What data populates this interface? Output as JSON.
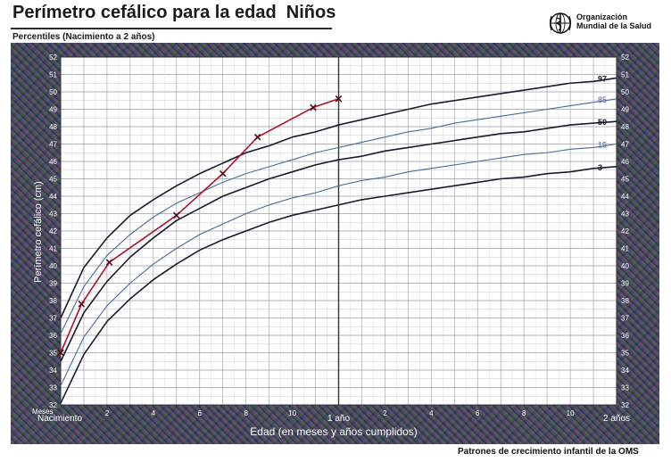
{
  "header": {
    "title": "Perímetro cefálico para la edad  Niños",
    "subtitle": "Percentiles (Nacimiento a 2 años)",
    "org_line1": "Organización",
    "org_line2": "Mundial de la Salud"
  },
  "footer": {
    "source": "Patrones de crecimiento infantil de la OMS"
  },
  "chart_data": {
    "type": "line",
    "title": "Perímetro cefálico para la edad  Niños",
    "subtitle": "Percentiles (Nacimiento a 2 años)",
    "xlabel": "Edad (en meses y años cumplidos)",
    "ylabel": "Perímetro cefálico (cm)",
    "xlim": [
      0,
      24
    ],
    "ylim": [
      32,
      52
    ],
    "grid": true,
    "x_unit_label": "Meses",
    "x_ticks_year1": [
      {
        "x": 0,
        "label": "Nacimiento"
      },
      {
        "x": 2,
        "label": "2"
      },
      {
        "x": 4,
        "label": "4"
      },
      {
        "x": 6,
        "label": "6"
      },
      {
        "x": 8,
        "label": "8"
      },
      {
        "x": 10,
        "label": "10"
      },
      {
        "x": 12,
        "label": "1 año"
      }
    ],
    "x_ticks_year2": [
      {
        "x": 14,
        "label": "2"
      },
      {
        "x": 16,
        "label": "4"
      },
      {
        "x": 18,
        "label": "6"
      },
      {
        "x": 20,
        "label": "8"
      },
      {
        "x": 22,
        "label": "10"
      },
      {
        "x": 24,
        "label": "2 años"
      }
    ],
    "y_ticks": [
      "32",
      "33",
      "34",
      "35",
      "36",
      "37",
      "38",
      "39",
      "40",
      "41",
      "42",
      "43",
      "44",
      "45",
      "46",
      "47",
      "48",
      "49",
      "50",
      "51",
      "52"
    ],
    "percentile_x": [
      0,
      1,
      2,
      3,
      4,
      5,
      6,
      7,
      8,
      9,
      10,
      11,
      12,
      13,
      14,
      15,
      16,
      17,
      18,
      19,
      20,
      21,
      22,
      23,
      24
    ],
    "percentiles": [
      {
        "name": "97",
        "color": "#1a1a2a",
        "bold": true,
        "values": [
          37.0,
          39.9,
          41.6,
          42.9,
          43.8,
          44.6,
          45.3,
          45.9,
          46.5,
          46.9,
          47.4,
          47.7,
          48.1,
          48.4,
          48.7,
          49.0,
          49.3,
          49.5,
          49.7,
          49.9,
          50.1,
          50.3,
          50.5,
          50.6,
          50.8
        ]
      },
      {
        "name": "85",
        "color": "#4a6a9a",
        "bold": false,
        "values": [
          36.1,
          38.8,
          40.6,
          41.8,
          42.8,
          43.6,
          44.2,
          44.8,
          45.3,
          45.7,
          46.1,
          46.5,
          46.8,
          47.1,
          47.4,
          47.7,
          47.9,
          48.2,
          48.4,
          48.6,
          48.8,
          49.0,
          49.2,
          49.4,
          49.6
        ]
      },
      {
        "name": "50",
        "color": "#1a1a2a",
        "bold": true,
        "values": [
          34.5,
          37.3,
          39.1,
          40.5,
          41.6,
          42.6,
          43.3,
          44.0,
          44.5,
          45.0,
          45.4,
          45.8,
          46.1,
          46.3,
          46.6,
          46.8,
          47.0,
          47.2,
          47.4,
          47.6,
          47.7,
          47.9,
          48.1,
          48.2,
          48.3
        ]
      },
      {
        "name": "15",
        "color": "#4a6a9a",
        "bold": false,
        "values": [
          33.1,
          35.9,
          37.7,
          39.0,
          40.1,
          41.0,
          41.8,
          42.4,
          43.0,
          43.5,
          43.9,
          44.2,
          44.6,
          44.9,
          45.1,
          45.4,
          45.6,
          45.8,
          46.0,
          46.2,
          46.4,
          46.5,
          46.7,
          46.8,
          47.0
        ]
      },
      {
        "name": "3",
        "color": "#1a1a2a",
        "bold": true,
        "values": [
          32.1,
          34.9,
          36.8,
          38.1,
          39.2,
          40.1,
          40.9,
          41.5,
          42.0,
          42.5,
          42.9,
          43.2,
          43.5,
          43.8,
          44.0,
          44.2,
          44.4,
          44.6,
          44.8,
          45.0,
          45.1,
          45.3,
          45.4,
          45.6,
          45.7
        ]
      }
    ],
    "series": [
      {
        "name": "",
        "color": "#b0102a",
        "x": [
          0,
          0.9,
          2.1,
          5.0,
          7.0,
          8.5,
          10.9,
          12.0
        ],
        "values": [
          35.0,
          37.8,
          40.2,
          42.9,
          45.3,
          47.4,
          49.1,
          49.6
        ]
      }
    ]
  }
}
